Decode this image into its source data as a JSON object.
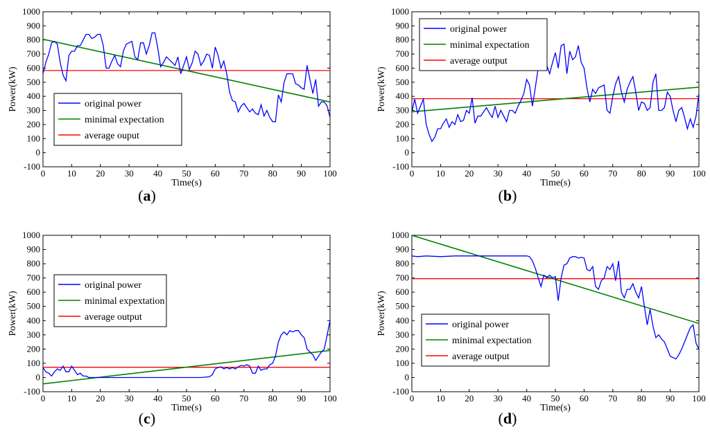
{
  "figure": {
    "xlabel": "Time(s)",
    "ylabel": "Power(kW)"
  },
  "colors": {
    "original": "#0000ff",
    "minimal": "#008000",
    "average": "#ff0000"
  },
  "chart_data": [
    {
      "type": "line",
      "panel_label": "a",
      "xlabel": "Time(s)",
      "ylabel": "Power(kW)",
      "xlim": [
        0,
        100
      ],
      "ylim": [
        -100,
        1000
      ],
      "xticks": [
        0,
        10,
        20,
        30,
        40,
        50,
        60,
        70,
        80,
        90,
        100
      ],
      "yticks": [
        -100,
        0,
        100,
        200,
        300,
        400,
        500,
        600,
        700,
        800,
        900,
        1000
      ],
      "legend": [
        "original power",
        "minimal expectation",
        "average ouput"
      ],
      "legend_position": "bottom-left",
      "series": [
        {
          "name": "original power",
          "color": "#0000ff",
          "x": [
            0,
            1,
            2,
            3,
            4,
            5,
            6,
            7,
            8,
            9,
            10,
            11,
            12,
            13,
            14,
            15,
            16,
            17,
            18,
            19,
            20,
            21,
            22,
            23,
            24,
            25,
            26,
            27,
            28,
            29,
            30,
            31,
            32,
            33,
            34,
            35,
            36,
            37,
            38,
            39,
            40,
            41,
            42,
            43,
            44,
            45,
            46,
            47,
            48,
            49,
            50,
            51,
            52,
            53,
            54,
            55,
            56,
            57,
            58,
            59,
            60,
            61,
            62,
            63,
            64,
            65,
            66,
            67,
            68,
            69,
            70,
            71,
            72,
            73,
            74,
            75,
            76,
            77,
            78,
            79,
            80,
            81,
            82,
            83,
            84,
            85,
            86,
            87,
            88,
            89,
            90,
            91,
            92,
            93,
            94,
            95,
            96,
            97,
            98,
            99,
            100
          ],
          "y": [
            560,
            640,
            700,
            780,
            790,
            770,
            640,
            550,
            510,
            690,
            720,
            720,
            760,
            760,
            800,
            840,
            840,
            810,
            820,
            840,
            840,
            760,
            600,
            600,
            650,
            690,
            630,
            610,
            720,
            770,
            780,
            790,
            680,
            660,
            780,
            780,
            700,
            760,
            850,
            850,
            740,
            610,
            640,
            680,
            660,
            640,
            620,
            680,
            560,
            620,
            680,
            590,
            640,
            720,
            700,
            620,
            650,
            700,
            690,
            600,
            750,
            690,
            600,
            650,
            560,
            430,
            370,
            360,
            290,
            330,
            350,
            320,
            290,
            310,
            280,
            270,
            340,
            260,
            300,
            250,
            220,
            220,
            410,
            360,
            500,
            560,
            560,
            560,
            490,
            480,
            460,
            450,
            620,
            520,
            420,
            520,
            330,
            360,
            360,
            330,
            250
          ]
        },
        {
          "name": "minimal expectation",
          "color": "#008000",
          "x": [
            0,
            100
          ],
          "y": [
            805,
            360
          ]
        },
        {
          "name": "average ouput",
          "color": "#ff0000",
          "x": [
            0,
            100
          ],
          "y": [
            583,
            583
          ]
        }
      ]
    },
    {
      "type": "line",
      "panel_label": "b",
      "xlabel": "Time(s)",
      "ylabel": "Power(kW)",
      "xlim": [
        0,
        100
      ],
      "ylim": [
        -100,
        1000
      ],
      "xticks": [
        0,
        10,
        20,
        30,
        40,
        50,
        60,
        70,
        80,
        90,
        100
      ],
      "yticks": [
        -100,
        0,
        100,
        200,
        300,
        400,
        500,
        600,
        700,
        800,
        900,
        1000
      ],
      "legend": [
        "original power",
        "minimal expectation",
        "average output"
      ],
      "legend_position": "top-left",
      "series": [
        {
          "name": "original power",
          "color": "#0000ff",
          "x": [
            0,
            1,
            2,
            3,
            4,
            5,
            6,
            7,
            8,
            9,
            10,
            11,
            12,
            13,
            14,
            15,
            16,
            17,
            18,
            19,
            20,
            21,
            22,
            23,
            24,
            25,
            26,
            27,
            28,
            29,
            30,
            31,
            32,
            33,
            34,
            35,
            36,
            37,
            38,
            39,
            40,
            41,
            42,
            43,
            44,
            45,
            46,
            47,
            48,
            49,
            50,
            51,
            52,
            53,
            54,
            55,
            56,
            57,
            58,
            59,
            60,
            61,
            62,
            63,
            64,
            65,
            66,
            67,
            68,
            69,
            70,
            71,
            72,
            73,
            74,
            75,
            76,
            77,
            78,
            79,
            80,
            81,
            82,
            83,
            84,
            85,
            86,
            87,
            88,
            89,
            90,
            91,
            92,
            93,
            94,
            95,
            96,
            97,
            98,
            99,
            100
          ],
          "y": [
            290,
            380,
            280,
            330,
            380,
            200,
            130,
            80,
            110,
            170,
            170,
            210,
            240,
            180,
            220,
            200,
            270,
            220,
            230,
            300,
            280,
            390,
            210,
            260,
            260,
            290,
            320,
            280,
            250,
            330,
            250,
            300,
            260,
            220,
            300,
            300,
            280,
            330,
            370,
            420,
            520,
            480,
            330,
            460,
            600,
            700,
            680,
            620,
            560,
            640,
            710,
            600,
            760,
            770,
            560,
            720,
            660,
            680,
            760,
            640,
            600,
            460,
            360,
            450,
            420,
            460,
            470,
            480,
            300,
            280,
            400,
            490,
            540,
            430,
            360,
            450,
            500,
            540,
            430,
            300,
            360,
            350,
            300,
            320,
            500,
            560,
            300,
            300,
            320,
            430,
            400,
            300,
            220,
            300,
            320,
            250,
            170,
            240,
            180,
            260,
            420
          ]
        },
        {
          "name": "minimal expectation",
          "color": "#008000",
          "x": [
            0,
            100
          ],
          "y": [
            290,
            465
          ]
        },
        {
          "name": "average output",
          "color": "#ff0000",
          "x": [
            0,
            100
          ],
          "y": [
            383,
            383
          ]
        }
      ]
    },
    {
      "type": "line",
      "panel_label": "c",
      "xlabel": "Time(s)",
      "ylabel": "Power(kW)",
      "xlim": [
        0,
        100
      ],
      "ylim": [
        -100,
        1000
      ],
      "xticks": [
        0,
        10,
        20,
        30,
        40,
        50,
        60,
        70,
        80,
        90,
        100
      ],
      "yticks": [
        -100,
        0,
        100,
        200,
        300,
        400,
        500,
        600,
        700,
        800,
        900,
        1000
      ],
      "legend": [
        "original power",
        "minimal expextation",
        "average output"
      ],
      "legend_position": "middle-left",
      "series": [
        {
          "name": "original power",
          "color": "#0000ff",
          "x": [
            0,
            1,
            2,
            3,
            4,
            5,
            6,
            7,
            8,
            9,
            10,
            11,
            12,
            13,
            14,
            15,
            16,
            17,
            18,
            19,
            20,
            22,
            25,
            30,
            35,
            40,
            45,
            50,
            55,
            58,
            59,
            60,
            61,
            62,
            63,
            64,
            65,
            66,
            67,
            68,
            69,
            70,
            71,
            72,
            73,
            74,
            75,
            76,
            77,
            78,
            79,
            80,
            81,
            82,
            83,
            84,
            85,
            86,
            87,
            88,
            89,
            90,
            91,
            92,
            93,
            94,
            95,
            96,
            97,
            98,
            99,
            100
          ],
          "y": [
            70,
            40,
            30,
            10,
            40,
            60,
            50,
            80,
            40,
            40,
            80,
            50,
            20,
            30,
            10,
            10,
            0,
            0,
            0,
            0,
            0,
            0,
            0,
            0,
            0,
            0,
            0,
            0,
            0,
            5,
            20,
            60,
            70,
            75,
            60,
            70,
            60,
            70,
            60,
            75,
            85,
            80,
            90,
            80,
            30,
            30,
            80,
            50,
            60,
            60,
            90,
            100,
            150,
            250,
            300,
            320,
            300,
            330,
            320,
            330,
            330,
            300,
            280,
            200,
            180,
            160,
            120,
            150,
            180,
            200,
            300,
            400
          ]
        },
        {
          "name": "minimal expextation",
          "color": "#008000",
          "x": [
            0,
            100
          ],
          "y": [
            -45,
            190
          ]
        },
        {
          "name": "average output",
          "color": "#ff0000",
          "x": [
            0,
            100
          ],
          "y": [
            72,
            72
          ]
        }
      ]
    },
    {
      "type": "line",
      "panel_label": "d",
      "xlabel": "Time(s)",
      "ylabel": "Power(kW)",
      "xlim": [
        0,
        100
      ],
      "ylim": [
        -100,
        1000
      ],
      "xticks": [
        0,
        10,
        20,
        30,
        40,
        50,
        60,
        70,
        80,
        90,
        100
      ],
      "yticks": [
        -100,
        0,
        100,
        200,
        300,
        400,
        500,
        600,
        700,
        800,
        900,
        1000
      ],
      "legend": [
        "original power",
        "minimal expectation",
        "average output"
      ],
      "legend_position": "middle-left",
      "series": [
        {
          "name": "original power",
          "color": "#0000ff",
          "x": [
            0,
            2,
            5,
            10,
            15,
            20,
            25,
            30,
            35,
            40,
            41,
            42,
            43,
            44,
            45,
            46,
            47,
            48,
            49,
            50,
            51,
            52,
            53,
            54,
            55,
            56,
            57,
            58,
            59,
            60,
            61,
            62,
            63,
            64,
            65,
            66,
            67,
            68,
            69,
            70,
            71,
            72,
            73,
            74,
            75,
            76,
            77,
            78,
            79,
            80,
            81,
            82,
            83,
            84,
            85,
            86,
            87,
            88,
            89,
            90,
            91,
            92,
            93,
            94,
            95,
            96,
            97,
            98,
            99,
            100
          ],
          "y": [
            855,
            850,
            855,
            850,
            855,
            855,
            855,
            855,
            855,
            855,
            850,
            820,
            770,
            700,
            640,
            720,
            700,
            720,
            700,
            710,
            540,
            700,
            790,
            800,
            840,
            850,
            850,
            840,
            845,
            840,
            760,
            750,
            780,
            640,
            620,
            680,
            700,
            780,
            760,
            800,
            680,
            820,
            600,
            560,
            620,
            620,
            660,
            600,
            560,
            640,
            500,
            370,
            480,
            360,
            280,
            300,
            270,
            250,
            200,
            150,
            140,
            130,
            160,
            200,
            250,
            300,
            350,
            370,
            240,
            200
          ]
        },
        {
          "name": "minimal expectation",
          "color": "#008000",
          "x": [
            0,
            100
          ],
          "y": [
            1000,
            380
          ]
        },
        {
          "name": "average output",
          "color": "#ff0000",
          "x": [
            0,
            100
          ],
          "y": [
            695,
            695
          ]
        }
      ]
    }
  ]
}
